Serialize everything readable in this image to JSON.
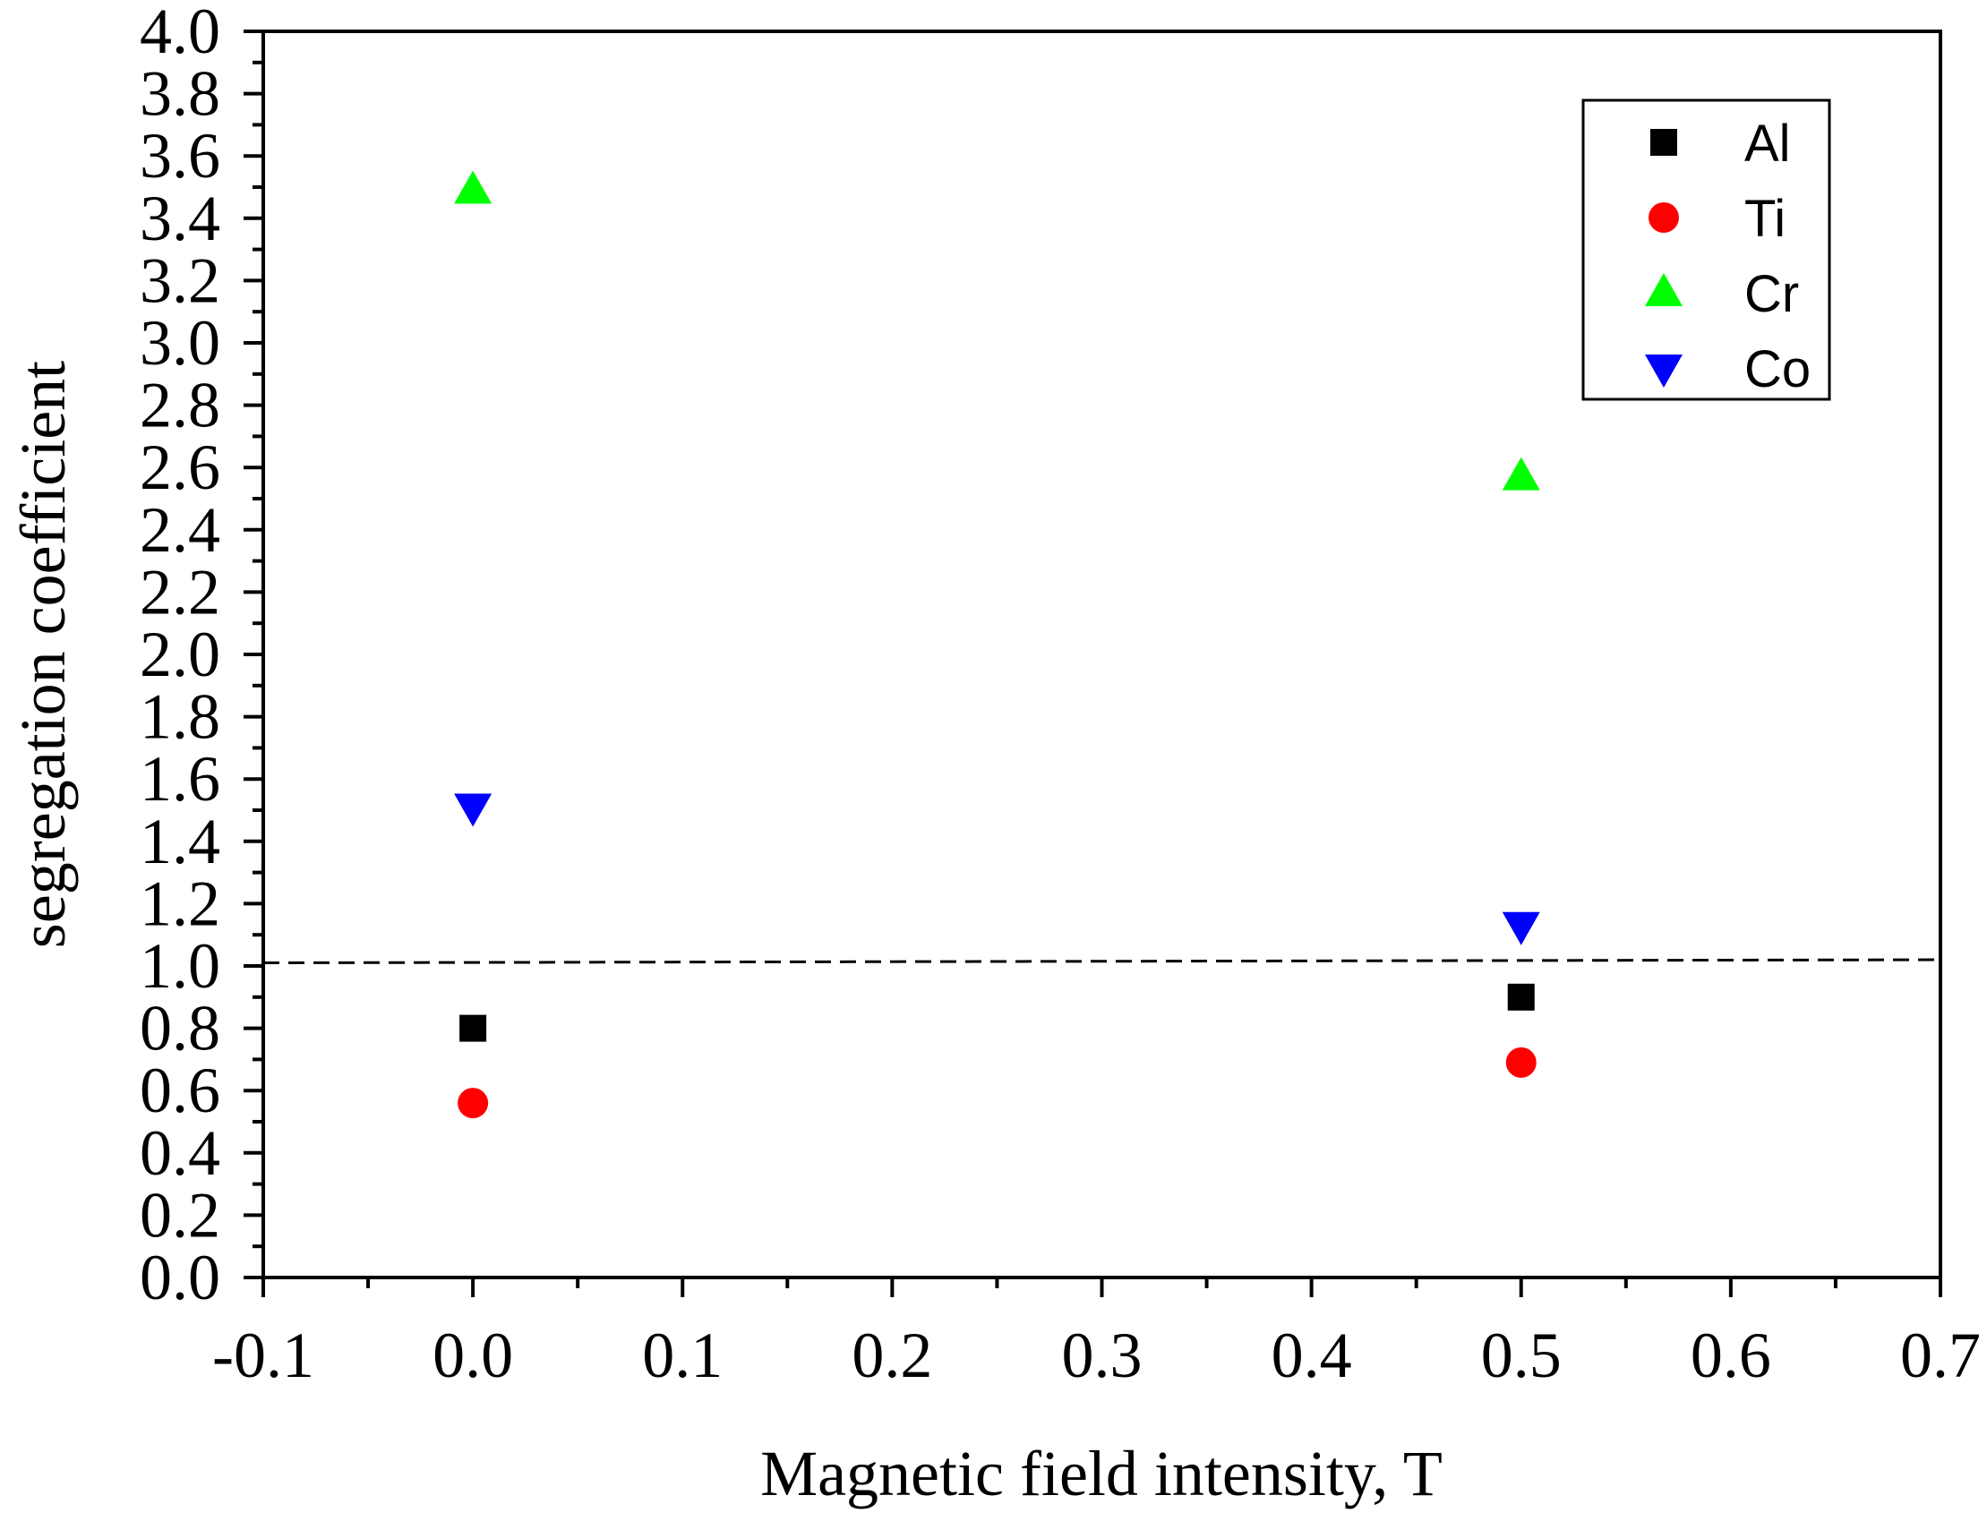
{
  "chart_data": {
    "type": "scatter",
    "title": "",
    "xlabel": "Magnetic field intensity, T",
    "ylabel": "segregation coefficient",
    "xlim": [
      -0.1,
      0.7
    ],
    "ylim": [
      0.0,
      4.0
    ],
    "x_ticks": [
      "-0.1",
      "0.0",
      "0.1",
      "0.2",
      "0.3",
      "0.4",
      "0.5",
      "0.6",
      "0.7"
    ],
    "y_ticks": [
      "0.0",
      "0.2",
      "0.4",
      "0.6",
      "0.8",
      "1.0",
      "1.2",
      "1.4",
      "1.6",
      "1.8",
      "2.0",
      "2.2",
      "2.4",
      "2.6",
      "2.8",
      "3.0",
      "3.2",
      "3.4",
      "3.6",
      "3.8",
      "4.0"
    ],
    "grid": false,
    "legend_position": "top-right",
    "series": [
      {
        "name": "Al",
        "marker": "square",
        "color": "#000000",
        "x": [
          0.0,
          0.5
        ],
        "y": [
          0.8,
          0.9
        ]
      },
      {
        "name": "Ti",
        "marker": "circle",
        "color": "#ff0000",
        "x": [
          0.0,
          0.5
        ],
        "y": [
          0.56,
          0.69
        ]
      },
      {
        "name": "Cr",
        "marker": "triangle-up",
        "color": "#00ff00",
        "x": [
          0.0,
          0.5
        ],
        "y": [
          3.49,
          2.57
        ]
      },
      {
        "name": "Co",
        "marker": "triangle-down",
        "color": "#0000ff",
        "x": [
          0.0,
          0.5
        ],
        "y": [
          1.51,
          1.13
        ]
      }
    ],
    "reference_line": {
      "style": "dashed",
      "color": "#000000",
      "x": [
        -0.1,
        0.7
      ],
      "y": [
        1.01,
        1.02
      ]
    }
  }
}
